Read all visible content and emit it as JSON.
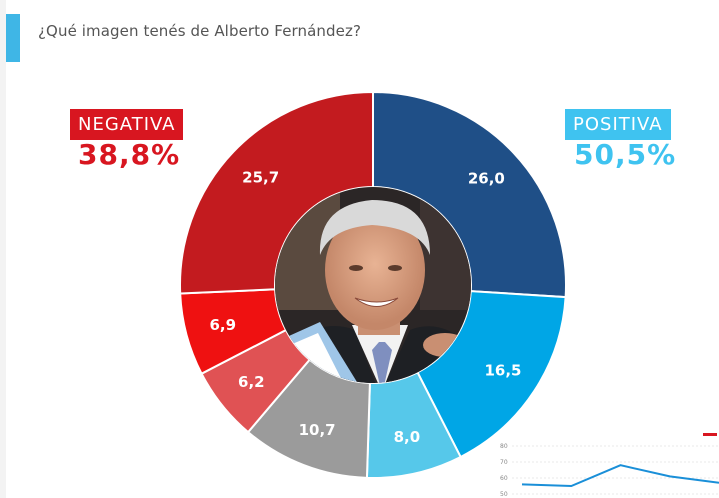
{
  "question": "¿Qué imagen tenés de Alberto Fernández?",
  "negative": {
    "label": "NEGATIVA",
    "total": "38,8%",
    "color": "#d81620"
  },
  "positive": {
    "label": "POSITIVA",
    "total": "50,5%",
    "color": "#3fc3f0"
  },
  "chart_data": {
    "type": "pie",
    "donut": true,
    "center_image": "politician-portrait-photo",
    "slices": [
      {
        "label": "26,0",
        "value": 26.0,
        "color": "#1f4f87"
      },
      {
        "label": "16,5",
        "value": 16.5,
        "color": "#00a6e6"
      },
      {
        "label": "8,0",
        "value": 8.0,
        "color": "#56c8ea"
      },
      {
        "label": "10,7",
        "value": 10.7,
        "color": "#9b9b9b"
      },
      {
        "label": "6,2",
        "value": 6.2,
        "color": "#e05254"
      },
      {
        "label": "6,9",
        "value": 6.9,
        "color": "#ef1111"
      },
      {
        "label": "25,7",
        "value": 25.7,
        "color": "#c31b1f"
      }
    ]
  },
  "mini_chart": {
    "yticks": [
      "80",
      "70",
      "60",
      "50"
    ],
    "values": [
      56,
      55,
      68,
      61,
      57
    ],
    "line_color": "#1a8fd8",
    "legend_color": "#d81620"
  }
}
